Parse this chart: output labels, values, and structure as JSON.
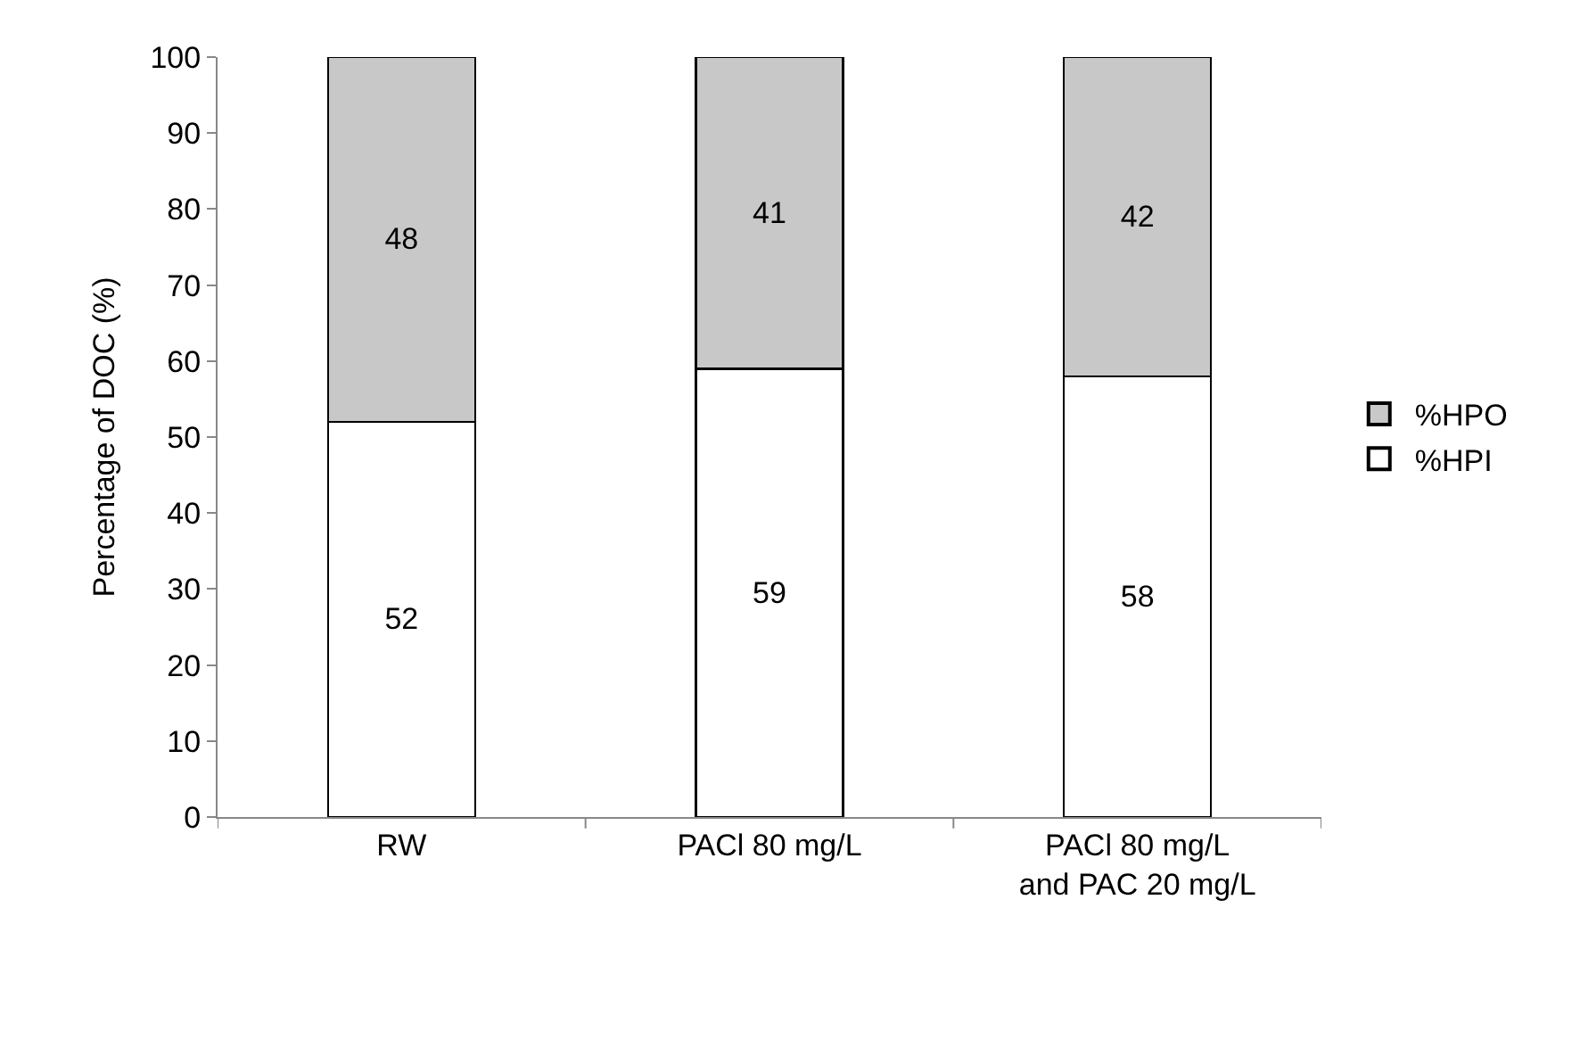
{
  "chart_data": {
    "type": "bar",
    "stacked": true,
    "ylabel": "Percentage of DOC (%)",
    "categories": [
      "RW",
      "PACl 80 mg/L",
      "PACl 80 mg/L and PAC 20 mg/L"
    ],
    "series": [
      {
        "name": "%HPI",
        "color": "#ffffff",
        "values": [
          52,
          59,
          58
        ]
      },
      {
        "name": "%HPO",
        "color": "#c8c8c8",
        "values": [
          48,
          41,
          42
        ]
      }
    ],
    "ylim": [
      0,
      100
    ],
    "yticks": [
      0,
      10,
      20,
      30,
      40,
      50,
      60,
      70,
      80,
      90,
      100
    ],
    "data_labels": true,
    "legend": "right"
  }
}
